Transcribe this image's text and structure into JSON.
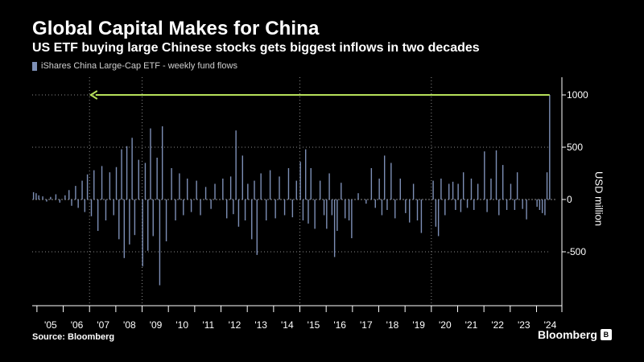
{
  "header": {
    "title": "Global Capital Makes for China",
    "subtitle": "US ETF buying large Chinese stocks gets biggest inflows in two decades"
  },
  "legend": {
    "label": "iShares China Large-Cap ETF - weekly fund flows"
  },
  "footer": {
    "source": "Source: Bloomberg",
    "brand": "Bloomberg",
    "brand_icon": "b-icon"
  },
  "colors": {
    "background": "#000000",
    "bars": "#7d8fb6",
    "arrow": "#b6e05a",
    "grid": "#8a8a8a",
    "axis": "#ffffff"
  },
  "chart_data": {
    "type": "bar",
    "title": "Global Capital Makes for China",
    "subtitle": "US ETF buying large Chinese stocks gets biggest inflows in two decades",
    "ylabel": "USD million",
    "xlabel": "",
    "ylim": [
      -1000,
      1200
    ],
    "yticks": [
      1000,
      500,
      0,
      -500
    ],
    "ytick_labels": [
      "1000",
      "500",
      "0",
      "-500"
    ],
    "xlim": [
      2004.8,
      2024.7
    ],
    "x_tick_labels": [
      {
        "x": 2005,
        "label": "'05"
      },
      {
        "x": 2006,
        "label": "'06"
      },
      {
        "x": 2007,
        "label": "'07"
      },
      {
        "x": 2008,
        "label": "'08"
      },
      {
        "x": 2009,
        "label": "'09"
      },
      {
        "x": 2010,
        "label": "'10"
      },
      {
        "x": 2011,
        "label": "'11"
      },
      {
        "x": 2012,
        "label": "'12"
      },
      {
        "x": 2013,
        "label": "'13"
      },
      {
        "x": 2014,
        "label": "'14"
      },
      {
        "x": 2015,
        "label": "'15"
      },
      {
        "x": 2016,
        "label": "'16"
      },
      {
        "x": 2017,
        "label": "'17"
      },
      {
        "x": 2018,
        "label": "'18"
      },
      {
        "x": 2019,
        "label": "'19"
      },
      {
        "x": 2020,
        "label": "'20"
      },
      {
        "x": 2021,
        "label": "'21"
      },
      {
        "x": 2022,
        "label": "'22"
      },
      {
        "x": 2023,
        "label": "'23"
      },
      {
        "x": 2024,
        "label": "'24"
      }
    ],
    "grid": "dotted, vertical lines at 2007, 2009, 2015, 2020 and horizontal lines at 1000, 500, -500",
    "series": [
      {
        "name": "iShares China Large-Cap ETF - weekly fund flows",
        "values": [
          [
            2004.85,
            70
          ],
          [
            2004.95,
            60
          ],
          [
            2005.05,
            40
          ],
          [
            2005.2,
            30
          ],
          [
            2005.35,
            -20
          ],
          [
            2005.5,
            25
          ],
          [
            2005.7,
            50
          ],
          [
            2005.85,
            -30
          ],
          [
            2006.05,
            40
          ],
          [
            2006.2,
            90
          ],
          [
            2006.3,
            -60
          ],
          [
            2006.45,
            130
          ],
          [
            2006.55,
            -80
          ],
          [
            2006.7,
            180
          ],
          [
            2006.8,
            -120
          ],
          [
            2006.9,
            240
          ],
          [
            2007.05,
            -160
          ],
          [
            2007.15,
            280
          ],
          [
            2007.3,
            -300
          ],
          [
            2007.45,
            320
          ],
          [
            2007.6,
            -200
          ],
          [
            2007.75,
            260
          ],
          [
            2007.9,
            -150
          ],
          [
            2008.0,
            310
          ],
          [
            2008.1,
            -380
          ],
          [
            2008.2,
            480
          ],
          [
            2008.3,
            -560
          ],
          [
            2008.4,
            510
          ],
          [
            2008.5,
            -430
          ],
          [
            2008.6,
            590
          ],
          [
            2008.7,
            -340
          ],
          [
            2008.85,
            380
          ],
          [
            2009.0,
            -640
          ],
          [
            2009.1,
            350
          ],
          [
            2009.2,
            -490
          ],
          [
            2009.3,
            680
          ],
          [
            2009.4,
            -350
          ],
          [
            2009.55,
            400
          ],
          [
            2009.65,
            -820
          ],
          [
            2009.75,
            700
          ],
          [
            2009.9,
            -400
          ],
          [
            2010.1,
            300
          ],
          [
            2010.25,
            -200
          ],
          [
            2010.4,
            250
          ],
          [
            2010.55,
            -150
          ],
          [
            2010.7,
            200
          ],
          [
            2010.85,
            -120
          ],
          [
            2011.05,
            180
          ],
          [
            2011.2,
            -150
          ],
          [
            2011.4,
            120
          ],
          [
            2011.6,
            -90
          ],
          [
            2011.75,
            150
          ],
          [
            2012.05,
            200
          ],
          [
            2012.2,
            -180
          ],
          [
            2012.35,
            220
          ],
          [
            2012.45,
            -140
          ],
          [
            2012.55,
            660
          ],
          [
            2012.65,
            -260
          ],
          [
            2012.8,
            420
          ],
          [
            2012.9,
            -200
          ],
          [
            2013.0,
            150
          ],
          [
            2013.15,
            -380
          ],
          [
            2013.25,
            180
          ],
          [
            2013.35,
            -530
          ],
          [
            2013.5,
            250
          ],
          [
            2013.7,
            -200
          ],
          [
            2013.85,
            280
          ],
          [
            2014.05,
            -180
          ],
          [
            2014.2,
            220
          ],
          [
            2014.4,
            -150
          ],
          [
            2014.55,
            300
          ],
          [
            2014.7,
            -170
          ],
          [
            2014.85,
            180
          ],
          [
            2015.0,
            360
          ],
          [
            2015.1,
            -200
          ],
          [
            2015.2,
            480
          ],
          [
            2015.3,
            -230
          ],
          [
            2015.4,
            300
          ],
          [
            2015.55,
            -280
          ],
          [
            2015.75,
            180
          ],
          [
            2015.9,
            -150
          ],
          [
            2016.0,
            -280
          ],
          [
            2016.1,
            250
          ],
          [
            2016.2,
            -150
          ],
          [
            2016.3,
            -550
          ],
          [
            2016.4,
            -300
          ],
          [
            2016.55,
            160
          ],
          [
            2016.7,
            -180
          ],
          [
            2016.85,
            -200
          ],
          [
            2016.95,
            -370
          ],
          [
            2017.2,
            60
          ],
          [
            2017.5,
            -40
          ],
          [
            2017.7,
            300
          ],
          [
            2017.85,
            -80
          ],
          [
            2018.0,
            200
          ],
          [
            2018.1,
            -150
          ],
          [
            2018.2,
            420
          ],
          [
            2018.3,
            -100
          ],
          [
            2018.45,
            350
          ],
          [
            2018.6,
            -180
          ],
          [
            2018.8,
            200
          ],
          [
            2019.0,
            -130
          ],
          [
            2019.15,
            -220
          ],
          [
            2019.3,
            150
          ],
          [
            2019.45,
            -200
          ],
          [
            2019.6,
            -320
          ],
          [
            2020.05,
            180
          ],
          [
            2020.15,
            -260
          ],
          [
            2020.25,
            -350
          ],
          [
            2020.35,
            200
          ],
          [
            2020.5,
            -150
          ],
          [
            2020.65,
            150
          ],
          [
            2020.8,
            170
          ],
          [
            2020.9,
            -100
          ],
          [
            2021.0,
            150
          ],
          [
            2021.1,
            -120
          ],
          [
            2021.2,
            260
          ],
          [
            2021.35,
            -80
          ],
          [
            2021.5,
            200
          ],
          [
            2021.6,
            -100
          ],
          [
            2021.75,
            150
          ],
          [
            2022.0,
            460
          ],
          [
            2022.1,
            -120
          ],
          [
            2022.25,
            200
          ],
          [
            2022.45,
            470
          ],
          [
            2022.55,
            -150
          ],
          [
            2022.7,
            330
          ],
          [
            2022.85,
            -100
          ],
          [
            2023.0,
            150
          ],
          [
            2023.15,
            -100
          ],
          [
            2023.25,
            260
          ],
          [
            2023.45,
            -90
          ],
          [
            2023.6,
            -190
          ],
          [
            2024.0,
            -70
          ],
          [
            2024.1,
            -100
          ],
          [
            2024.2,
            -130
          ],
          [
            2024.3,
            -150
          ],
          [
            2024.38,
            260
          ],
          [
            2024.48,
            1000
          ]
        ]
      }
    ],
    "annotations": [
      {
        "type": "arrow",
        "from": [
          2024.48,
          1000
        ],
        "to": [
          2007.15,
          1000
        ],
        "color": "#b6e05a"
      }
    ]
  }
}
